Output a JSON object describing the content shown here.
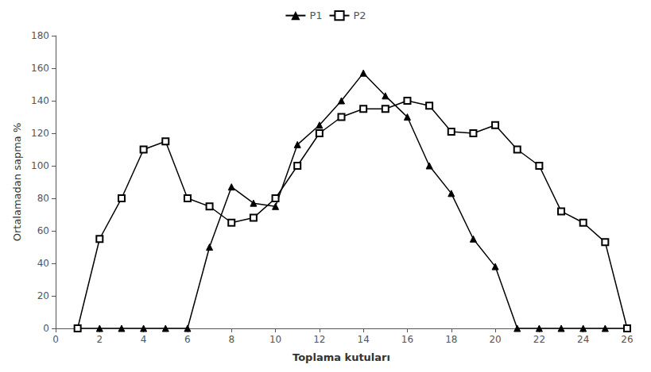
{
  "chart_data": {
    "type": "line",
    "xlabel": "Toplama kutuları",
    "ylabel": "Ortalamadan sapma %",
    "x": [
      1,
      2,
      3,
      4,
      5,
      6,
      7,
      8,
      9,
      10,
      11,
      12,
      13,
      14,
      15,
      16,
      17,
      18,
      19,
      20,
      21,
      22,
      23,
      24,
      25,
      26
    ],
    "series": [
      {
        "name": "P1",
        "color": "#000000",
        "marker": "triangle",
        "values": [
          0,
          0,
          0,
          0,
          0,
          0,
          50,
          87,
          77,
          75,
          113,
          125,
          140,
          157,
          143,
          130,
          100,
          83,
          55,
          38,
          0,
          0,
          0,
          0,
          0,
          0
        ]
      },
      {
        "name": "P2",
        "color": "#000000",
        "marker": "square-open",
        "values": [
          0,
          55,
          80,
          110,
          115,
          80,
          75,
          65,
          68,
          80,
          100,
          120,
          130,
          135,
          135,
          140,
          137,
          121,
          120,
          125,
          110,
          100,
          72,
          65,
          53,
          0
        ]
      }
    ],
    "xlim": [
      0,
      26
    ],
    "ylim": [
      0,
      180
    ],
    "xticks": [
      0,
      2,
      4,
      6,
      8,
      10,
      12,
      14,
      16,
      18,
      20,
      22,
      24,
      26
    ],
    "yticks": [
      0,
      20,
      40,
      60,
      80,
      100,
      120,
      140,
      160,
      180
    ],
    "grid": false,
    "legend": "upper center"
  }
}
